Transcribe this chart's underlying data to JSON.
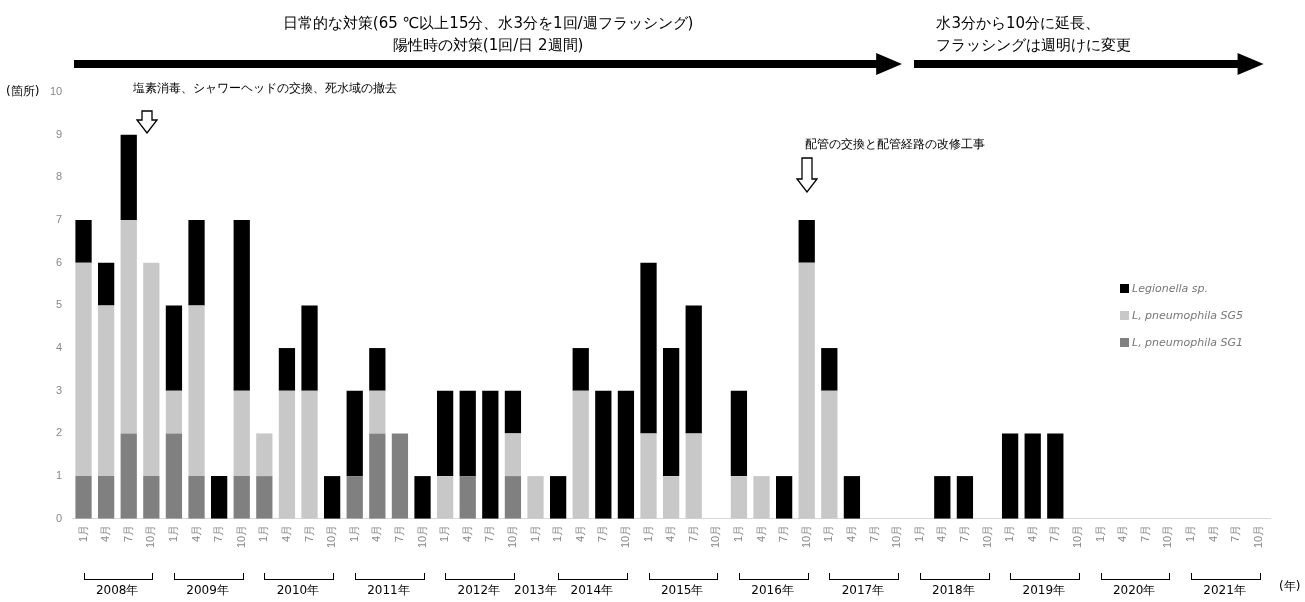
{
  "chart_data": {
    "type": "bar",
    "stacked": true,
    "ylabel": "(箇所)",
    "xlabel": "(年)",
    "categories": [
      "1月",
      "4月",
      "7月",
      "10月",
      "1月",
      "4月",
      "7月",
      "10月",
      "1月",
      "4月",
      "7月",
      "10月",
      "1月",
      "4月",
      "7月",
      "10月",
      "1月",
      "4月",
      "7月",
      "10月",
      "1月",
      "1月",
      "4月",
      "7月",
      "10月",
      "1月",
      "4月",
      "7月",
      "10月",
      "1月",
      "4月",
      "7月",
      "10月",
      "1月",
      "4月",
      "7月",
      "10月",
      "1月",
      "4月",
      "7月",
      "10月",
      "1月",
      "4月",
      "7月",
      "10月",
      "1月",
      "4月",
      "7月",
      "10月",
      "1月",
      "4月",
      "7月",
      "10月"
    ],
    "series": [
      {
        "name": "L, pneumophila SG1",
        "color": "#808080",
        "values": [
          1,
          1,
          2,
          1,
          2,
          1,
          0,
          1,
          1,
          0,
          0,
          0,
          1,
          2,
          2,
          0,
          0,
          1,
          0,
          1,
          0,
          0,
          0,
          0,
          0,
          0,
          0,
          0,
          0,
          0,
          0,
          0,
          0,
          0,
          0,
          0,
          0,
          0,
          0,
          0,
          0,
          0,
          0,
          0,
          0,
          0,
          0,
          0,
          0,
          0,
          0,
          0,
          0
        ]
      },
      {
        "name": "L, pneumophila SG5",
        "color": "#c8c8c8",
        "values": [
          5,
          4,
          5,
          5,
          1,
          4,
          0,
          2,
          1,
          3,
          3,
          0,
          0,
          1,
          0,
          0,
          1,
          0,
          0,
          1,
          1,
          0,
          3,
          0,
          0,
          2,
          1,
          2,
          0,
          1,
          1,
          0,
          6,
          3,
          0,
          0,
          0,
          0,
          0,
          0,
          0,
          0,
          0,
          0,
          0,
          0,
          0,
          0,
          0,
          0,
          0,
          0,
          0
        ]
      },
      {
        "name": "Legionella sp.",
        "color": "#000000",
        "values": [
          1,
          1,
          2,
          0,
          2,
          2,
          1,
          4,
          0,
          1,
          2,
          1,
          2,
          1,
          0,
          1,
          2,
          2,
          3,
          1,
          0,
          1,
          1,
          3,
          3,
          4,
          3,
          3,
          0,
          2,
          0,
          1,
          1,
          1,
          1,
          0,
          0,
          0,
          1,
          1,
          0,
          2,
          2,
          2,
          0,
          0,
          0,
          0,
          0,
          0,
          0,
          0,
          0
        ]
      }
    ],
    "ylim": [
      0,
      10
    ],
    "yticks": [
      0,
      1,
      2,
      3,
      4,
      5,
      6,
      7,
      8,
      9,
      10
    ],
    "grid": false,
    "legend": "right",
    "annotations": [
      "2008年",
      "2009年",
      "2010年",
      "2011年",
      "2012年",
      "2013年",
      "2014年",
      "2015年",
      "2016年",
      "2017年",
      "2018年",
      "2019年",
      "2020年",
      "2021年",
      "日常的な対策(65 ℃以上15分、水3分を1回/週フラッシング)",
      "陽性時の対策(1回/日 2週間)",
      "水3分から10分に延長、",
      "フラッシングは週明けに変更",
      "塩素消毒、シャワーヘッドの交換、死水域の撤去",
      "配管の交換と配管経路の改修工事"
    ]
  }
}
